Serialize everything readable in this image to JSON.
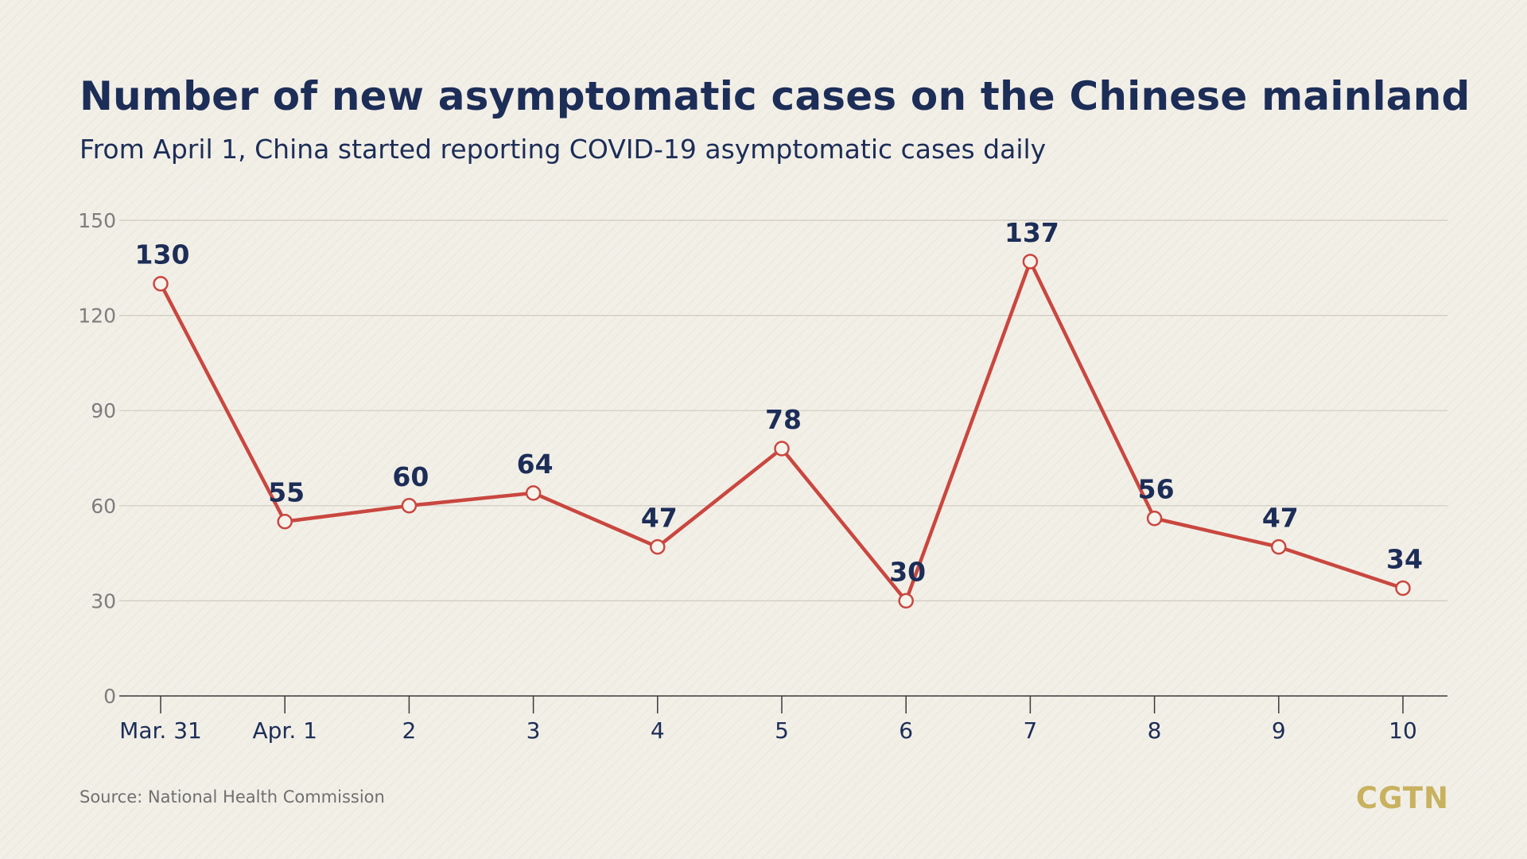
{
  "chart_data": {
    "type": "line",
    "title": "Number of new asymptomatic cases on the Chinese mainland",
    "subtitle": "From April 1, China started reporting COVID-19 asymptomatic cases daily",
    "categories": [
      "Mar. 31",
      "Apr. 1",
      "2",
      "3",
      "4",
      "5",
      "6",
      "7",
      "8",
      "9",
      "10"
    ],
    "series": [
      {
        "values": [
          130,
          55,
          60,
          64,
          47,
          78,
          30,
          137,
          56,
          47,
          34
        ]
      }
    ],
    "ylim": [
      0,
      150
    ],
    "yticks": [
      0,
      30,
      60,
      90,
      120,
      150
    ],
    "xlabel": "",
    "ylabel": "",
    "grid": true,
    "legend": "none",
    "line_color": "#c9473f",
    "label_color": "#1c2d57"
  },
  "footer": {
    "source": "Source: National Health Commission",
    "logo": "CGTN"
  }
}
